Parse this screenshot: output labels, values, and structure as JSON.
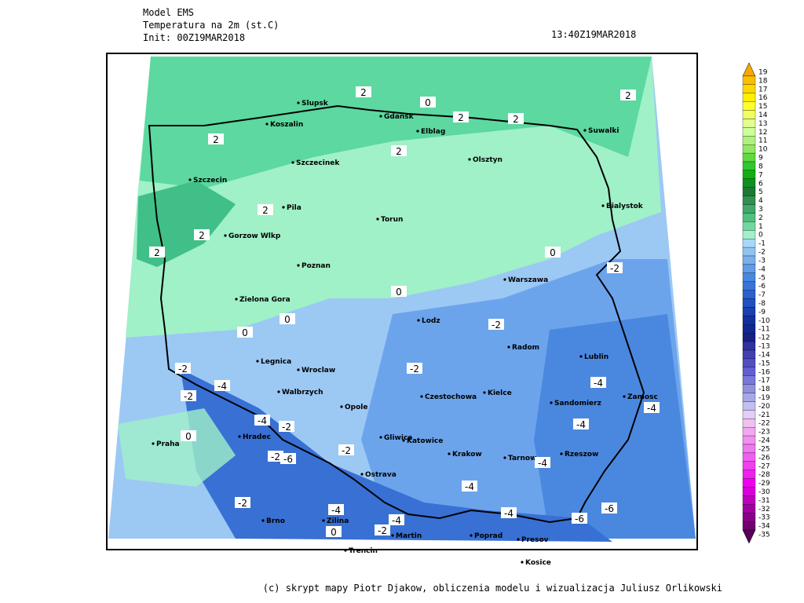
{
  "header": {
    "model": "Model EMS",
    "variable": "Temperatura na 2m (st.C)",
    "init": "Init: 00Z19MAR2018",
    "valid": "13:40Z19MAR2018"
  },
  "footer": "(c) skrypt mapy Piotr Djakow, obliczenia modelu i wizualizacja Juliusz Orlikowski",
  "cities": [
    "Slupsk",
    "Koszalin",
    "Gdansk",
    "Elblag",
    "Suwalki",
    "Szczecinek",
    "Olsztyn",
    "Szczecin",
    "Pila",
    "Torun",
    "Bialystok",
    "Gorzow Wlkp",
    "Poznan",
    "Warszawa",
    "Zielona Gora",
    "Lodz",
    "Radom",
    "Lublin",
    "Legnica",
    "Wroclaw",
    "Walbrzych",
    "Kielce",
    "Czestochowa",
    "Sandomierz",
    "Zamosc",
    "Opole",
    "Gliwice",
    "Katowice",
    "Praha",
    "Hradec",
    "Krakow",
    "Tarnow",
    "Rzeszow",
    "Ostrava",
    "Brno",
    "Zilina",
    "Martin",
    "Poprad",
    "Presov",
    "Trencin",
    "Kosice"
  ],
  "contour_labels": [
    2,
    2,
    2,
    2,
    2,
    2,
    2,
    2,
    2,
    0,
    0,
    0,
    0,
    0,
    0,
    0,
    -2,
    -2,
    -2,
    -2,
    -2,
    -2,
    -2,
    -2,
    -2,
    -2,
    -4,
    -4,
    -4,
    -4,
    -4,
    -4,
    -4,
    -4,
    -4,
    -4,
    -6,
    -6,
    -6
  ],
  "colorbar": {
    "values": [
      19,
      18,
      17,
      16,
      15,
      14,
      13,
      12,
      11,
      10,
      9,
      8,
      7,
      6,
      5,
      4,
      3,
      2,
      1,
      0,
      -1,
      -2,
      -3,
      -4,
      -5,
      -6,
      -7,
      -8,
      -9,
      -10,
      -11,
      -12,
      -13,
      -14,
      -15,
      -16,
      -17,
      -18,
      -19,
      -20,
      -21,
      -22,
      -23,
      -24,
      -25,
      -26,
      -27,
      -28,
      -29,
      -30,
      -31,
      -32,
      -33,
      -34,
      -35
    ],
    "colors": [
      "#f5a800",
      "#f8c000",
      "#fbd800",
      "#fff000",
      "#ffff30",
      "#f0ff60",
      "#e0ff90",
      "#ccff99",
      "#b0f080",
      "#90e860",
      "#60d840",
      "#30c830",
      "#10b010",
      "#109020",
      "#207830",
      "#309050",
      "#40a868",
      "#50c080",
      "#70d8a0",
      "#a0f0c8",
      "#a8d8f8",
      "#90c4f0",
      "#78b0ec",
      "#609ce8",
      "#4888e0",
      "#3874d8",
      "#2860cc",
      "#2050c0",
      "#1840b0",
      "#1030a0",
      "#102890",
      "#182080",
      "#3030a0",
      "#4040b0",
      "#5050c0",
      "#6060d0",
      "#7878d8",
      "#9090e0",
      "#a8a8e8",
      "#c0c0f0",
      "#e0d0f8",
      "#f0c0f0",
      "#f0a8f0",
      "#f090f0",
      "#f078f0",
      "#f060f0",
      "#f040f0",
      "#f020f0",
      "#f000f0",
      "#d800d8",
      "#c000c0",
      "#a000a0",
      "#880088",
      "#700070",
      "#580058"
    ]
  }
}
